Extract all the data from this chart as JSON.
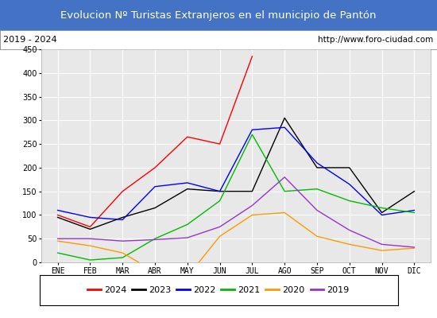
{
  "title": "Evolucion Nº Turistas Extranjeros en el municipio de Pantón",
  "subtitle_left": "2019 - 2024",
  "subtitle_right": "http://www.foro-ciudad.com",
  "title_bg_color": "#4472c4",
  "title_text_color": "#ffffff",
  "subtitle_bg_color": "#ffffff",
  "subtitle_text_color": "#000000",
  "plot_bg_color": "#e8e8e8",
  "grid_color": "#ffffff",
  "months": [
    "ENE",
    "FEB",
    "MAR",
    "ABR",
    "MAY",
    "JUN",
    "JUL",
    "AGO",
    "SEP",
    "OCT",
    "NOV",
    "DIC"
  ],
  "ylim": [
    0,
    450
  ],
  "yticks": [
    0,
    50,
    100,
    150,
    200,
    250,
    300,
    350,
    400,
    450
  ],
  "series": {
    "2024": {
      "color": "#ff0000",
      "values": [
        100,
        75,
        150,
        200,
        265,
        250,
        435,
        null,
        null,
        null,
        null,
        null
      ]
    },
    "2023": {
      "color": "#000000",
      "values": [
        95,
        70,
        95,
        115,
        155,
        150,
        150,
        305,
        200,
        200,
        105,
        150
      ]
    },
    "2022": {
      "color": "#0000ff",
      "values": [
        110,
        95,
        90,
        160,
        168,
        150,
        280,
        285,
        210,
        165,
        100,
        110
      ]
    },
    "2021": {
      "color": "#00bb00",
      "values": [
        20,
        5,
        10,
        50,
        80,
        130,
        270,
        150,
        155,
        130,
        115,
        105
      ]
    },
    "2020": {
      "color": "#ff9900",
      "values": [
        45,
        35,
        20,
        -20,
        -30,
        55,
        100,
        105,
        55,
        38,
        25,
        30
      ]
    },
    "2019": {
      "color": "#9933cc",
      "values": [
        50,
        50,
        45,
        48,
        52,
        75,
        120,
        180,
        110,
        68,
        38,
        32
      ]
    }
  },
  "legend_order": [
    "2024",
    "2023",
    "2022",
    "2021",
    "2020",
    "2019"
  ]
}
